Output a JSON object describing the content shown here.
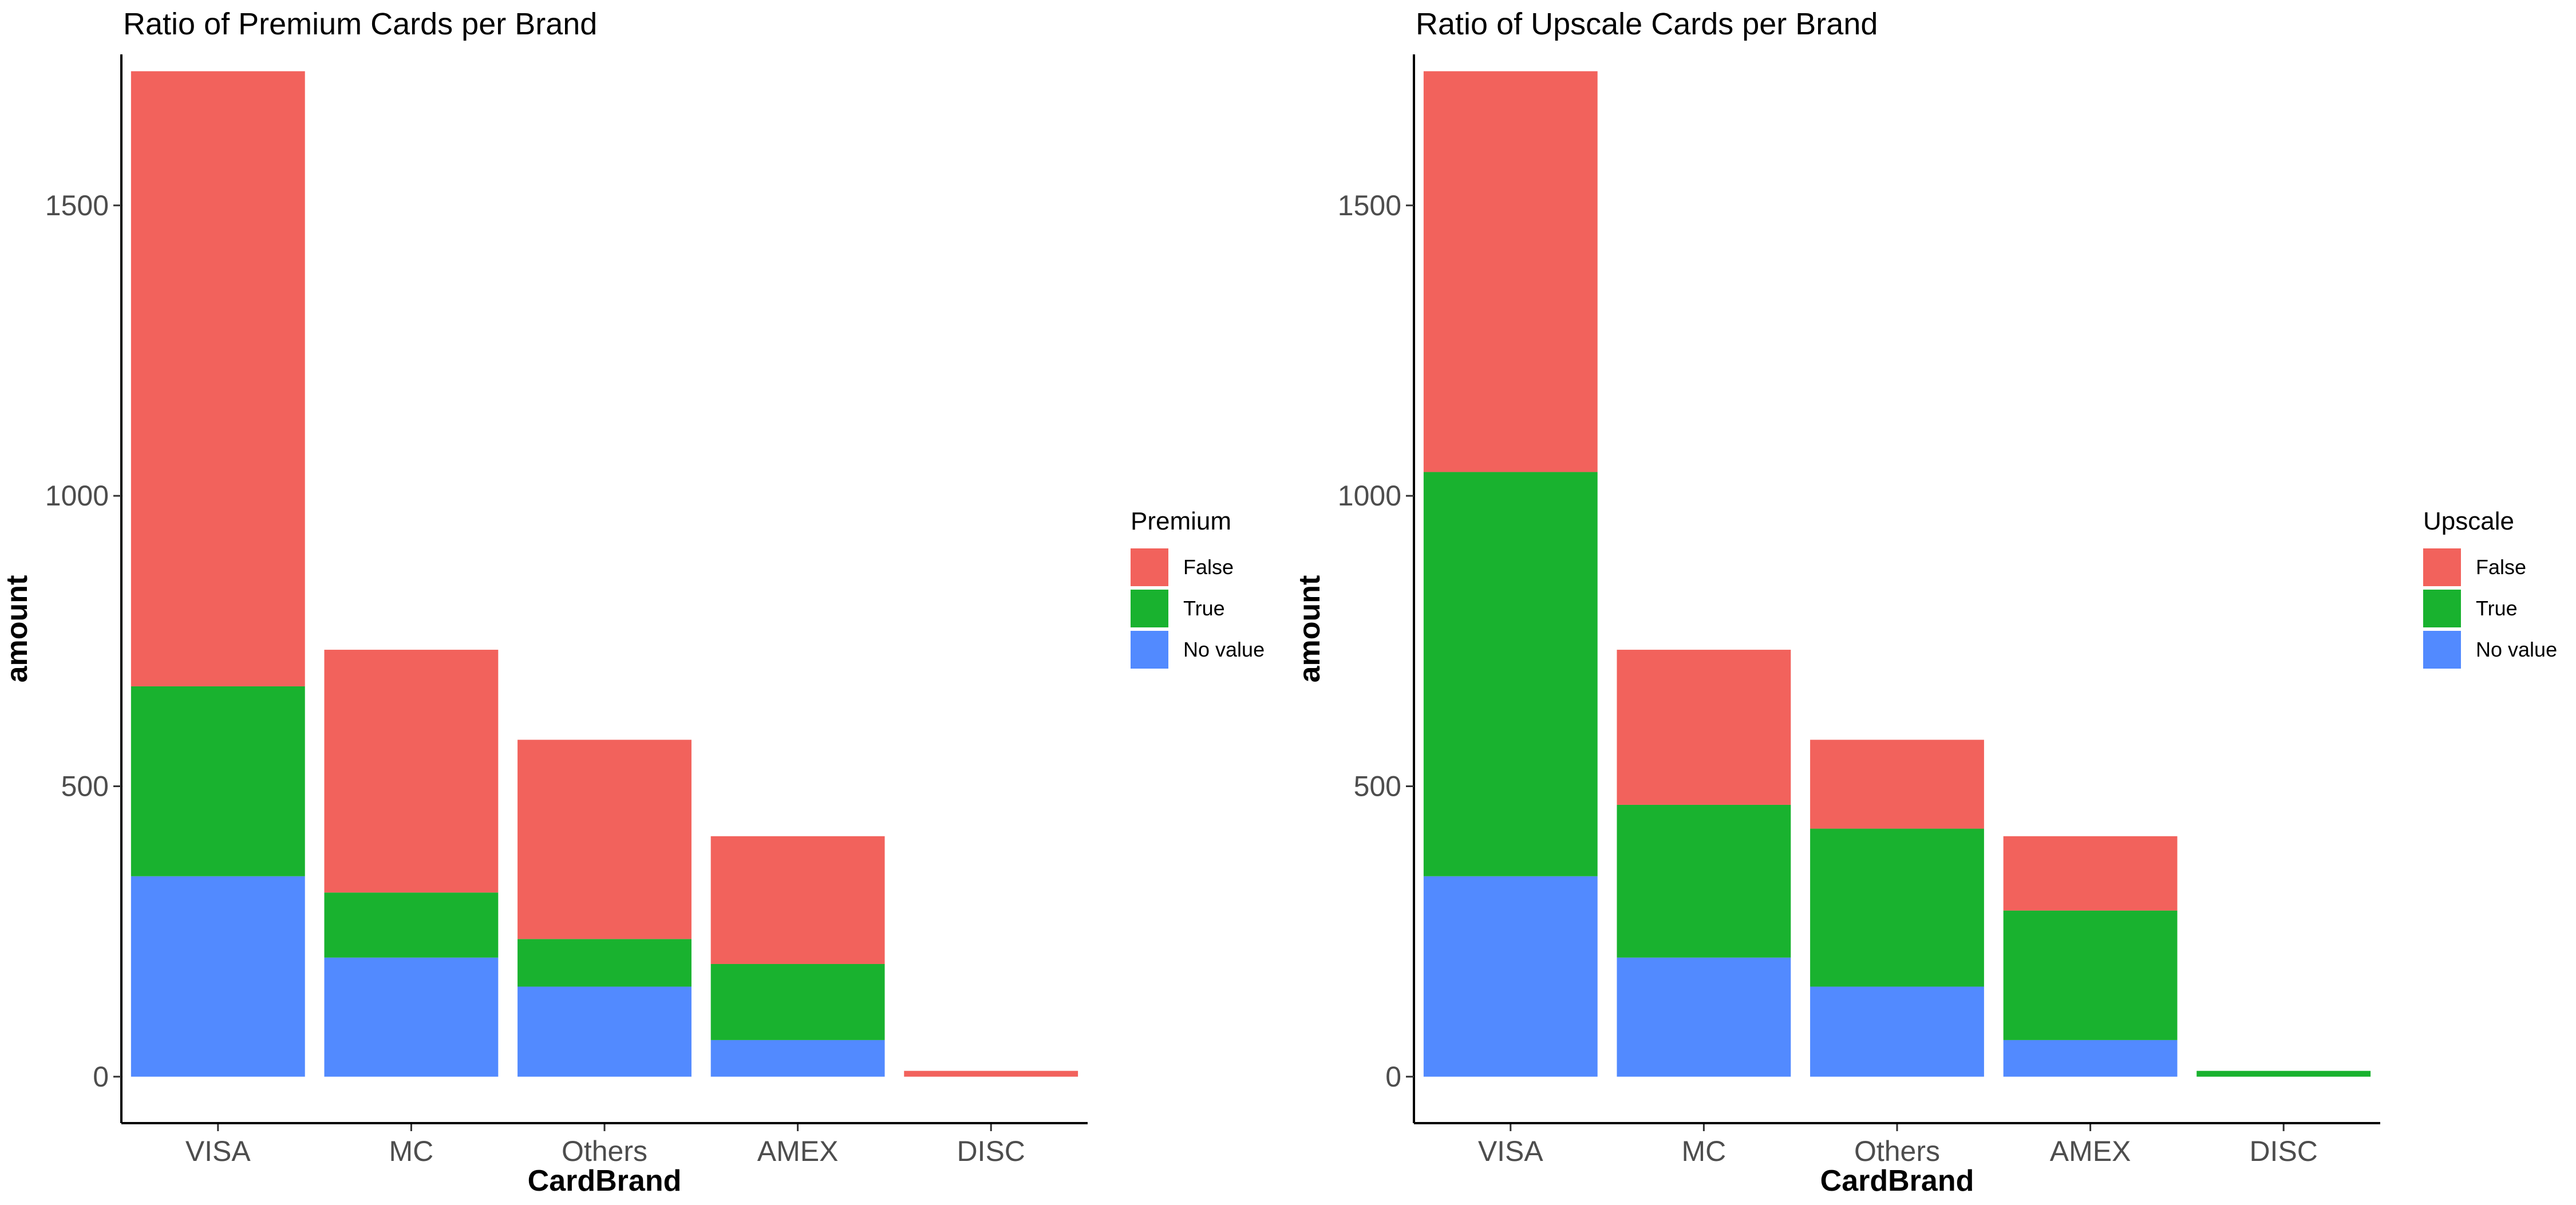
{
  "chart_data": [
    {
      "type": "bar",
      "stacked": true,
      "title": "Ratio of Premium Cards per Brand",
      "xlabel": "CardBrand",
      "ylabel": "amount",
      "categories": [
        "VISA",
        "MC",
        "Others",
        "AMEX",
        "DISC"
      ],
      "ylim": [
        -80,
        1760
      ],
      "yticks": [
        0,
        500,
        1000,
        1500
      ],
      "grid": false,
      "legend": {
        "title": "Premium",
        "placement": "right",
        "entries": [
          "False",
          "True",
          "No value"
        ]
      },
      "series": [
        {
          "name": "No value",
          "color": "#528AFF",
          "values": [
            345,
            205,
            155,
            63,
            0
          ]
        },
        {
          "name": "True",
          "color": "#19B22F",
          "values": [
            327,
            112,
            82,
            131,
            0
          ]
        },
        {
          "name": "False",
          "color": "#F2625C",
          "values": [
            1059,
            418,
            343,
            220,
            10
          ]
        }
      ]
    },
    {
      "type": "bar",
      "stacked": true,
      "title": "Ratio of Upscale Cards per Brand",
      "xlabel": "CardBrand",
      "ylabel": "amount",
      "categories": [
        "VISA",
        "MC",
        "Others",
        "AMEX",
        "DISC"
      ],
      "ylim": [
        -80,
        1760
      ],
      "yticks": [
        0,
        500,
        1000,
        1500
      ],
      "grid": false,
      "legend": {
        "title": "Upscale",
        "placement": "right",
        "entries": [
          "False",
          "True",
          "No value"
        ]
      },
      "series": [
        {
          "name": "No value",
          "color": "#528AFF",
          "values": [
            345,
            205,
            155,
            63,
            0
          ]
        },
        {
          "name": "True",
          "color": "#19B22F",
          "values": [
            696,
            263,
            272,
            223,
            10
          ]
        },
        {
          "name": "False",
          "color": "#F2625C",
          "values": [
            690,
            267,
            153,
            128,
            0
          ]
        }
      ]
    }
  ]
}
